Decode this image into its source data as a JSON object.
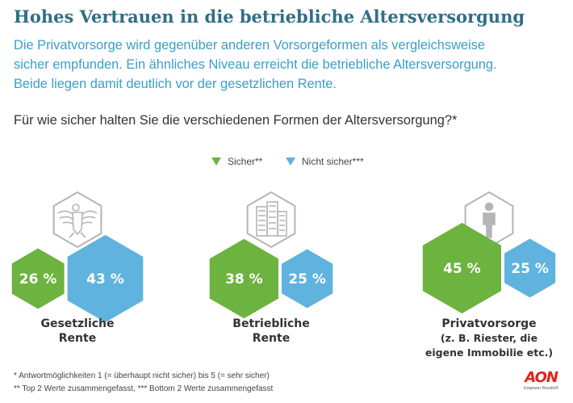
{
  "title": "Hohes Vertrauen in die betriebliche Altersversorgung",
  "subtitle_lines": [
    "Die Privatvorsorge wird gegenüber anderen Vorsorgeformen als vergleichsweise",
    "sicher empfunden. Ein ähnliches Niveau erreicht die betriebliche Altersversorgung.",
    "Beide liegen damit deutlich vor der gesetzlichen Rente."
  ],
  "question": "Für wie sicher halten Sie die verschiedenen Formen der Altersversorgung?*",
  "colors": {
    "sicher": "#6db33f",
    "nicht_sicher": "#5fb3de",
    "icon_stroke": "#b5b5b5",
    "title": "#2f6f87",
    "subtitle": "#3a9fc7"
  },
  "footnotes": [
    "* Antwortmöglichkeiten 1 (= überhaupt nicht sicher) bis 5 (= sehr sicher)",
    "** Top 2 Werte zusammengefasst, *** Bottom 2 Werte zusammengefasst"
  ],
  "logo": {
    "brand": "AON",
    "tagline": "Empower Results®"
  },
  "chart_data": {
    "type": "bar",
    "categories": [
      "Gesetzliche Rente",
      "Betriebliche Rente",
      "Privatvorsorge (z. B. Riester, die eigene Immobilie etc.)"
    ],
    "category_label_lines": [
      [
        "Gesetzliche",
        "Rente"
      ],
      [
        "Betriebliche",
        "Rente"
      ],
      [
        "Privatvorsorge",
        "(z. B. Riester, die",
        "eigene Immobilie etc.)"
      ]
    ],
    "category_icons": [
      "eagle-icon",
      "office-building-icon",
      "person-icon"
    ],
    "series": [
      {
        "name": "Sicher**",
        "values": [
          26,
          38,
          45
        ],
        "labels": [
          "26 %",
          "38 %",
          "45 %"
        ],
        "color": "#6db33f"
      },
      {
        "name": "Nicht sicher***",
        "values": [
          43,
          25,
          25
        ],
        "labels": [
          "43 %",
          "25 %",
          "25 %"
        ],
        "color": "#5fb3de"
      }
    ],
    "unit": "%",
    "legend_position": "top-center"
  }
}
